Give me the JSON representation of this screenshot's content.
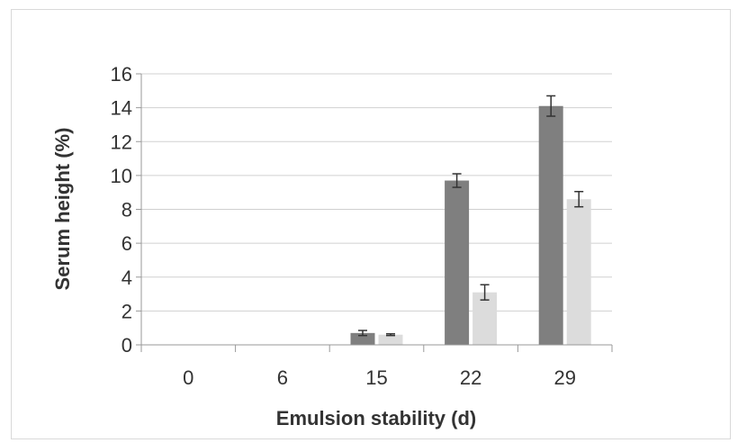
{
  "chart_data": {
    "type": "bar",
    "title": "",
    "xlabel": "Emulsion stability (d)",
    "ylabel": "Serum height  (%)",
    "categories": [
      "0",
      "6",
      "15",
      "22",
      "29"
    ],
    "ylim": [
      0,
      16
    ],
    "yticks": [
      0,
      2,
      4,
      6,
      8,
      10,
      12,
      14,
      16
    ],
    "grid": true,
    "legend": "none",
    "series": [
      {
        "values": [
          0,
          0,
          0.7,
          9.7,
          14.1
        ],
        "errors": [
          0,
          0,
          0.15,
          0.4,
          0.6
        ],
        "color": "#7f7f7f"
      },
      {
        "values": [
          0,
          0,
          0.6,
          3.1,
          8.6
        ],
        "errors": [
          0,
          0,
          0.05,
          0.45,
          0.45
        ],
        "color": "#dcdcdc"
      }
    ]
  }
}
